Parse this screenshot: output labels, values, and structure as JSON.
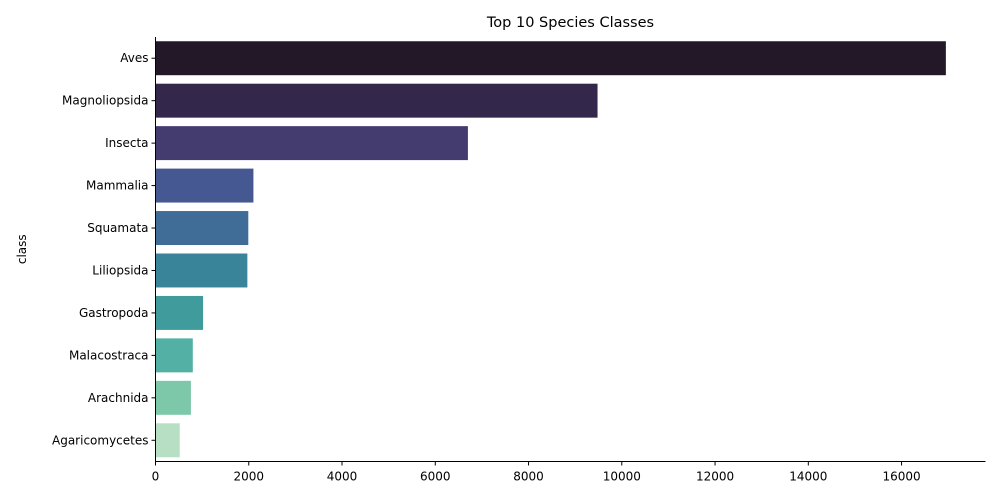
{
  "chart_data": {
    "type": "bar",
    "orientation": "horizontal",
    "title": "Top 10 Species Classes",
    "xlabel": "",
    "ylabel": "class",
    "xlim": [
      0,
      17800
    ],
    "xticks": [
      0,
      2000,
      4000,
      6000,
      8000,
      10000,
      12000,
      14000,
      16000
    ],
    "grid": false,
    "categories": [
      "Aves",
      "Magnoliopsida",
      "Insecta",
      "Mammalia",
      "Squamata",
      "Liliopsida",
      "Gastropoda",
      "Malacostraca",
      "Arachnida",
      "Agaricomycetes"
    ],
    "values": [
      16950,
      9480,
      6700,
      2100,
      1990,
      1970,
      1020,
      800,
      760,
      520
    ],
    "colors": [
      "#231827",
      "#33284c",
      "#443b6e",
      "#465891",
      "#3f6d98",
      "#3a8499",
      "#409b9d",
      "#53b0a4",
      "#7ec8aa",
      "#b7dfc4"
    ]
  }
}
